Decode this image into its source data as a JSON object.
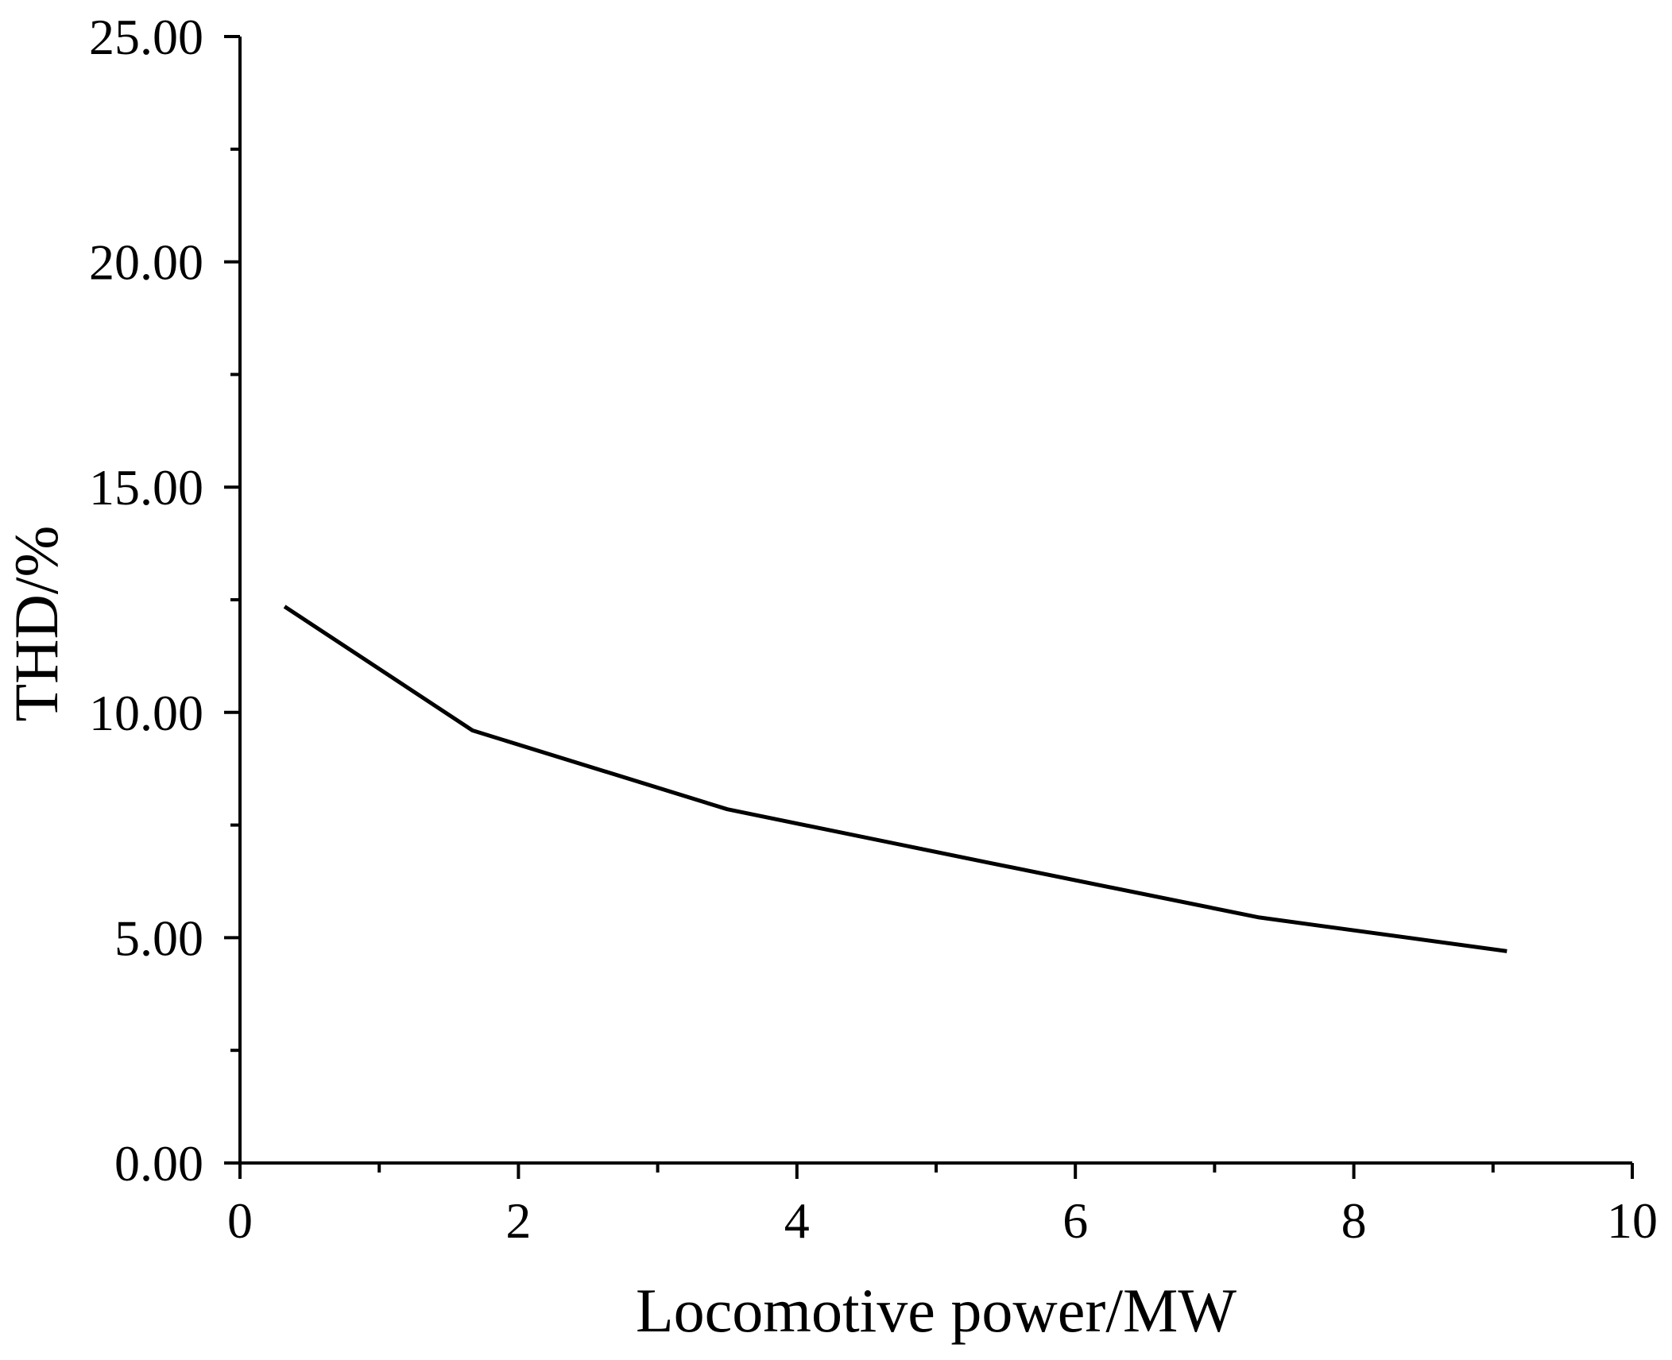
{
  "chart_data": {
    "type": "line",
    "title": "",
    "xlabel": "Locomotive power/MW",
    "ylabel": "THD/%",
    "xlim": [
      0,
      10
    ],
    "ylim": [
      0,
      25
    ],
    "x_ticks": [
      0,
      2,
      4,
      6,
      8,
      10
    ],
    "x_tick_labels": [
      "0",
      "2",
      "4",
      "6",
      "8",
      "10"
    ],
    "y_ticks": [
      0,
      5,
      10,
      15,
      20,
      25
    ],
    "y_tick_labels": [
      "0.00",
      "5.00",
      "10.00",
      "15.00",
      "20.00",
      "25.00"
    ],
    "grid": false,
    "series": [
      {
        "x": [
          0.32,
          1.67,
          3.5,
          5.4,
          7.32,
          9.1
        ],
        "y": [
          12.35,
          9.6,
          7.85,
          6.65,
          5.45,
          4.7
        ],
        "color": "#000000"
      }
    ]
  }
}
